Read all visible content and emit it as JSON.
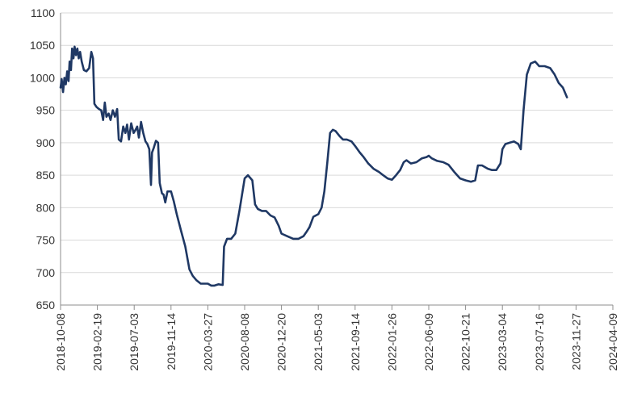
{
  "chart_data": {
    "type": "line",
    "title": "",
    "xlabel": "",
    "ylabel": "",
    "ylim": [
      650,
      1100
    ],
    "grid": true,
    "legend": "none",
    "line_color": "#1f3864",
    "yticks": [
      650,
      700,
      750,
      800,
      850,
      900,
      950,
      1000,
      1050,
      1100
    ],
    "ytick_labels": [
      "650",
      "700",
      "750",
      "800",
      "850",
      "900",
      "950",
      "1000",
      "1050",
      "1100"
    ],
    "xlim": [
      "2018-10-08",
      "2024-04-09"
    ],
    "xtick_labels": [
      "2018-10-08",
      "2019-02-19",
      "2019-07-03",
      "2019-11-14",
      "2020-03-27",
      "2020-08-08",
      "2020-12-20",
      "2021-05-03",
      "2021-09-14",
      "2022-01-26",
      "2022-06-09",
      "2022-10-21",
      "2023-03-04",
      "2023-07-16",
      "2023-11-27",
      "2024-04-09"
    ],
    "series": [
      {
        "values": [
          [
            "2018-10-08",
            985
          ],
          [
            "2018-10-12",
            998
          ],
          [
            "2018-10-17",
            978
          ],
          [
            "2018-10-22",
            1000
          ],
          [
            "2018-10-27",
            990
          ],
          [
            "2018-11-01",
            1010
          ],
          [
            "2018-11-06",
            995
          ],
          [
            "2018-11-10",
            1025
          ],
          [
            "2018-11-15",
            1012
          ],
          [
            "2018-11-19",
            1045
          ],
          [
            "2018-11-24",
            1030
          ],
          [
            "2018-11-28",
            1048
          ],
          [
            "2018-12-03",
            1035
          ],
          [
            "2018-12-08",
            1045
          ],
          [
            "2018-12-13",
            1030
          ],
          [
            "2018-12-18",
            1040
          ],
          [
            "2018-12-24",
            1025
          ],
          [
            "2019-01-01",
            1012
          ],
          [
            "2019-01-10",
            1010
          ],
          [
            "2019-01-20",
            1015
          ],
          [
            "2019-01-28",
            1040
          ],
          [
            "2019-02-03",
            1030
          ],
          [
            "2019-02-08",
            960
          ],
          [
            "2019-02-16",
            955
          ],
          [
            "2019-02-25",
            952
          ],
          [
            "2019-03-05",
            950
          ],
          [
            "2019-03-12",
            935
          ],
          [
            "2019-03-18",
            962
          ],
          [
            "2019-03-24",
            940
          ],
          [
            "2019-04-01",
            945
          ],
          [
            "2019-04-08",
            935
          ],
          [
            "2019-04-16",
            950
          ],
          [
            "2019-04-24",
            940
          ],
          [
            "2019-05-02",
            952
          ],
          [
            "2019-05-08",
            905
          ],
          [
            "2019-05-16",
            902
          ],
          [
            "2019-05-24",
            925
          ],
          [
            "2019-06-01",
            915
          ],
          [
            "2019-06-07",
            928
          ],
          [
            "2019-06-14",
            905
          ],
          [
            "2019-06-22",
            930
          ],
          [
            "2019-07-01",
            915
          ],
          [
            "2019-07-08",
            920
          ],
          [
            "2019-07-14",
            925
          ],
          [
            "2019-07-20",
            908
          ],
          [
            "2019-07-28",
            932
          ],
          [
            "2019-08-05",
            915
          ],
          [
            "2019-08-13",
            902
          ],
          [
            "2019-08-20",
            898
          ],
          [
            "2019-08-27",
            890
          ],
          [
            "2019-09-02",
            835
          ],
          [
            "2019-09-06",
            885
          ],
          [
            "2019-09-12",
            892
          ],
          [
            "2019-09-20",
            903
          ],
          [
            "2019-09-28",
            900
          ],
          [
            "2019-10-04",
            838
          ],
          [
            "2019-10-12",
            822
          ],
          [
            "2019-10-18",
            820
          ],
          [
            "2019-10-24",
            808
          ],
          [
            "2019-11-01",
            825
          ],
          [
            "2019-11-14",
            825
          ],
          [
            "2019-11-24",
            810
          ],
          [
            "2019-12-05",
            790
          ],
          [
            "2019-12-20",
            765
          ],
          [
            "2020-01-05",
            740
          ],
          [
            "2020-01-20",
            705
          ],
          [
            "2020-02-01",
            695
          ],
          [
            "2020-02-15",
            688
          ],
          [
            "2020-03-01",
            683
          ],
          [
            "2020-03-10",
            683
          ],
          [
            "2020-03-27",
            683
          ],
          [
            "2020-04-08",
            680
          ],
          [
            "2020-04-20",
            680
          ],
          [
            "2020-05-05",
            682
          ],
          [
            "2020-05-20",
            681
          ],
          [
            "2020-05-25",
            740
          ],
          [
            "2020-06-05",
            752
          ],
          [
            "2020-06-20",
            752
          ],
          [
            "2020-07-05",
            760
          ],
          [
            "2020-07-20",
            795
          ],
          [
            "2020-08-08",
            845
          ],
          [
            "2020-08-20",
            850
          ],
          [
            "2020-09-05",
            842
          ],
          [
            "2020-09-15",
            805
          ],
          [
            "2020-09-25",
            798
          ],
          [
            "2020-10-10",
            795
          ],
          [
            "2020-10-25",
            795
          ],
          [
            "2020-11-10",
            788
          ],
          [
            "2020-11-25",
            785
          ],
          [
            "2020-12-10",
            772
          ],
          [
            "2020-12-20",
            760
          ],
          [
            "2021-01-10",
            756
          ],
          [
            "2021-02-01",
            752
          ],
          [
            "2021-02-20",
            752
          ],
          [
            "2021-03-10",
            756
          ],
          [
            "2021-03-20",
            762
          ],
          [
            "2021-04-01",
            770
          ],
          [
            "2021-04-15",
            786
          ],
          [
            "2021-05-03",
            790
          ],
          [
            "2021-05-15",
            800
          ],
          [
            "2021-05-25",
            825
          ],
          [
            "2021-06-05",
            870
          ],
          [
            "2021-06-15",
            915
          ],
          [
            "2021-06-25",
            920
          ],
          [
            "2021-07-05",
            918
          ],
          [
            "2021-07-20",
            910
          ],
          [
            "2021-08-01",
            905
          ],
          [
            "2021-08-15",
            905
          ],
          [
            "2021-09-01",
            902
          ],
          [
            "2021-09-14",
            895
          ],
          [
            "2021-10-01",
            885
          ],
          [
            "2021-10-15",
            878
          ],
          [
            "2021-11-01",
            868
          ],
          [
            "2021-11-20",
            860
          ],
          [
            "2021-12-10",
            855
          ],
          [
            "2021-12-25",
            850
          ],
          [
            "2022-01-10",
            845
          ],
          [
            "2022-01-26",
            843
          ],
          [
            "2022-02-10",
            850
          ],
          [
            "2022-02-25",
            858
          ],
          [
            "2022-03-10",
            870
          ],
          [
            "2022-03-20",
            873
          ],
          [
            "2022-04-05",
            868
          ],
          [
            "2022-04-25",
            870
          ],
          [
            "2022-05-15",
            876
          ],
          [
            "2022-06-01",
            878
          ],
          [
            "2022-06-09",
            880
          ],
          [
            "2022-06-20",
            876
          ],
          [
            "2022-07-10",
            872
          ],
          [
            "2022-08-01",
            870
          ],
          [
            "2022-08-20",
            866
          ],
          [
            "2022-09-10",
            855
          ],
          [
            "2022-10-01",
            845
          ],
          [
            "2022-10-21",
            842
          ],
          [
            "2022-11-10",
            840
          ],
          [
            "2022-11-25",
            842
          ],
          [
            "2022-12-05",
            865
          ],
          [
            "2022-12-20",
            865
          ],
          [
            "2023-01-10",
            860
          ],
          [
            "2023-01-25",
            858
          ],
          [
            "2023-02-10",
            858
          ],
          [
            "2023-02-25",
            868
          ],
          [
            "2023-03-04",
            890
          ],
          [
            "2023-03-15",
            898
          ],
          [
            "2023-03-30",
            900
          ],
          [
            "2023-04-15",
            902
          ],
          [
            "2023-05-01",
            898
          ],
          [
            "2023-05-10",
            890
          ],
          [
            "2023-05-20",
            950
          ],
          [
            "2023-06-01",
            1005
          ],
          [
            "2023-06-15",
            1022
          ],
          [
            "2023-07-01",
            1025
          ],
          [
            "2023-07-16",
            1018
          ],
          [
            "2023-08-05",
            1018
          ],
          [
            "2023-08-25",
            1015
          ],
          [
            "2023-09-10",
            1005
          ],
          [
            "2023-09-25",
            992
          ],
          [
            "2023-10-10",
            985
          ],
          [
            "2023-10-25",
            970
          ]
        ]
      }
    ]
  }
}
